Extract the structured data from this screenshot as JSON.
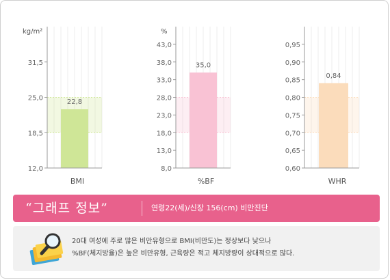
{
  "chart_data": [
    {
      "type": "bar",
      "unit": "kg/m²",
      "categories": [
        "BMI"
      ],
      "values": [
        22.8
      ],
      "value_label": "22,8",
      "yticks": [
        "12,0",
        "18,5",
        "25,0",
        "31,5"
      ],
      "ylim": [
        12.0,
        38.0
      ],
      "normal_range": [
        18.5,
        25.0
      ],
      "bar_color": "#cfe697"
    },
    {
      "type": "bar",
      "unit": "%",
      "categories": [
        "%BF"
      ],
      "values": [
        35.0
      ],
      "value_label": "35,0",
      "yticks": [
        "8,0",
        "13,0",
        "18,0",
        "23,0",
        "28,0",
        "33,0",
        "38,0",
        "43,0"
      ],
      "ylim": [
        8.0,
        48.0
      ],
      "normal_range": [
        18.0,
        28.0
      ],
      "bar_color": "#f9c2d4"
    },
    {
      "type": "bar",
      "unit": "",
      "categories": [
        "WHR"
      ],
      "values": [
        0.84
      ],
      "value_label": "0,84",
      "yticks": [
        "0,60",
        "0,65",
        "0,70",
        "0,75",
        "0,80",
        "0,85",
        "0,90",
        "0,95"
      ],
      "ylim": [
        0.6,
        1.0
      ],
      "normal_range": [
        0.7,
        0.8
      ],
      "bar_color": "#fbdcbb"
    }
  ],
  "banner": {
    "title": "“그래프 정보”",
    "subtitle": "연령22(세)/신장 156(cm) 비만진단"
  },
  "info": {
    "line1": "20대 여성에 주로 많은 비만유형으로 BMI(비만도)는 정상보다 낮으나",
    "line2": "%BF(체지방율)은 높은 비만유형, 근육량은 적고 체지방량이 상대적으로 많다."
  },
  "icons": {
    "info_icon": "magnifier-folder-icon"
  }
}
